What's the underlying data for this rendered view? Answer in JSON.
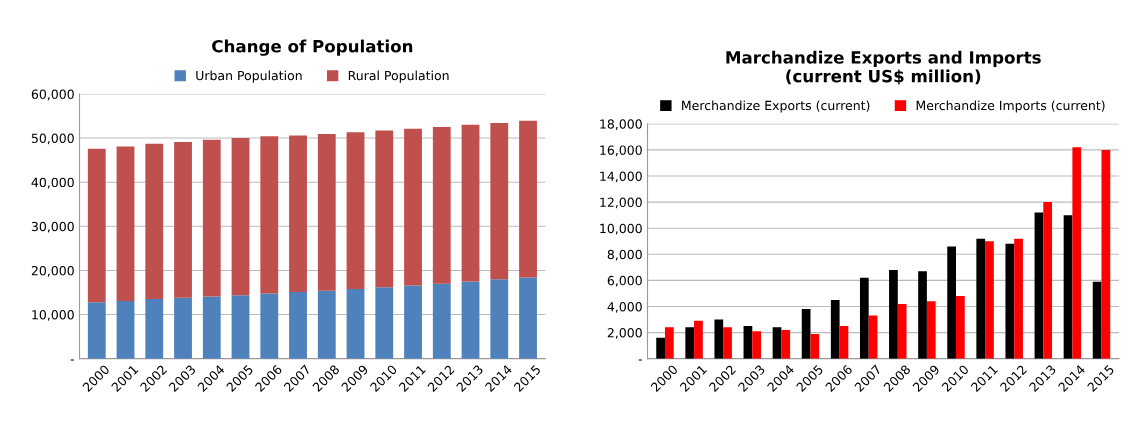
{
  "chart_data": [
    {
      "type": "bar",
      "title": "Change of Population",
      "stacked": true,
      "legend": "top",
      "grid": "y",
      "categories": [
        "2000",
        "2001",
        "2002",
        "2003",
        "2004",
        "2005",
        "2006",
        "2007",
        "2008",
        "2009",
        "2010",
        "2011",
        "2012",
        "2013",
        "2014",
        "2015"
      ],
      "series": [
        {
          "name": "Urban Population",
          "color": "#4f81bd",
          "values": [
            12800,
            13100,
            13500,
            13800,
            14100,
            14400,
            14800,
            15100,
            15400,
            15800,
            16200,
            16600,
            17000,
            17500,
            18000,
            18400
          ]
        },
        {
          "name": "Rural Population",
          "color": "#c0504d",
          "values": [
            34800,
            35000,
            35200,
            35300,
            35500,
            35600,
            35600,
            35500,
            35500,
            35500,
            35500,
            35500,
            35500,
            35500,
            35400,
            35500
          ]
        }
      ],
      "ylim": [
        0,
        60000
      ],
      "yticks": [
        {
          "value": 0,
          "label": "-"
        },
        {
          "value": 10000,
          "label": "10,000"
        },
        {
          "value": 20000,
          "label": "20,000"
        },
        {
          "value": 30000,
          "label": "30,000"
        },
        {
          "value": 40000,
          "label": "40,000"
        },
        {
          "value": 50000,
          "label": "50,000"
        },
        {
          "value": 60000,
          "label": "60,000"
        }
      ]
    },
    {
      "type": "bar",
      "title": "Marchandize Exports and Imports\n(current US$ million)",
      "legend": "top",
      "grid": "y",
      "categories": [
        "2000",
        "2001",
        "2002",
        "2003",
        "2004",
        "2005",
        "2006",
        "2007",
        "2008",
        "2009",
        "2010",
        "2011",
        "2012",
        "2013",
        "2014",
        "2015"
      ],
      "series": [
        {
          "name": "Merchandize Exports (current)",
          "color": "#000000",
          "values": [
            1600,
            2400,
            3000,
            2500,
            2400,
            3800,
            4500,
            6200,
            6800,
            6700,
            8600,
            9200,
            8800,
            11200,
            11000,
            5900
          ]
        },
        {
          "name": "Merchandize Imports (current)",
          "color": "#ff0000",
          "values": [
            2400,
            2900,
            2400,
            2100,
            2200,
            1900,
            2500,
            3300,
            4200,
            4400,
            4800,
            9000,
            9200,
            12000,
            16200,
            16000
          ]
        }
      ],
      "ylim": [
        0,
        18000
      ],
      "yticks": [
        {
          "value": 0,
          "label": "-"
        },
        {
          "value": 2000,
          "label": "2,000"
        },
        {
          "value": 4000,
          "label": "4,000"
        },
        {
          "value": 6000,
          "label": "6,000"
        },
        {
          "value": 8000,
          "label": "8,000"
        },
        {
          "value": 10000,
          "label": "10,000"
        },
        {
          "value": 12000,
          "label": "12,000"
        },
        {
          "value": 14000,
          "label": "14,000"
        },
        {
          "value": 16000,
          "label": "16,000"
        },
        {
          "value": 18000,
          "label": "18,000"
        }
      ]
    }
  ]
}
